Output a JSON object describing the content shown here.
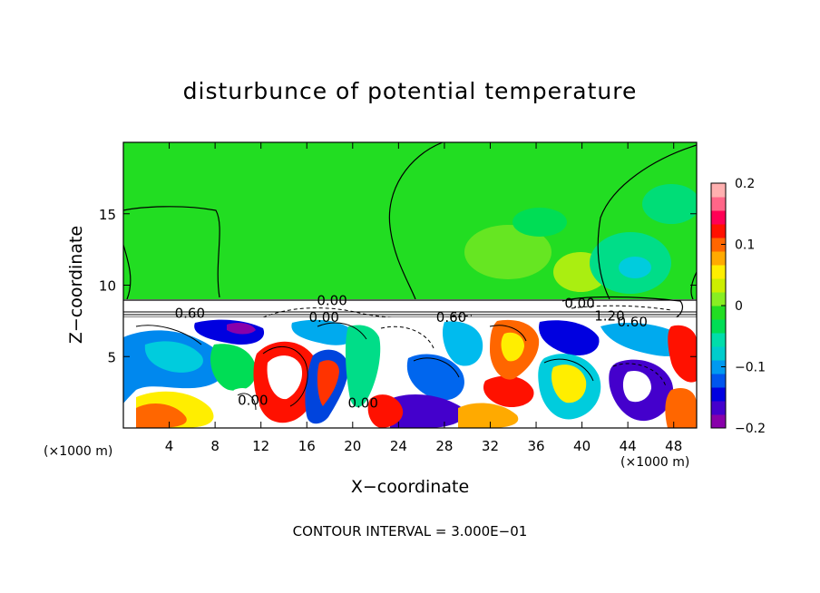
{
  "chart_data": {
    "type": "heatmap",
    "title": "disturbunce of potential temperature",
    "xlabel": "X−coordinate",
    "ylabel": "Z−coordinate",
    "x_unit": "(×1000 m)",
    "y_unit": "(×1000 m)",
    "xlim": [
      0,
      50
    ],
    "ylim": [
      0,
      20
    ],
    "x_ticks": [
      4,
      8,
      12,
      16,
      20,
      24,
      28,
      32,
      36,
      40,
      44,
      48
    ],
    "y_ticks": [
      5,
      10,
      15
    ],
    "colorbar": {
      "range": [
        -0.2,
        0.2
      ],
      "tick_values": [
        0.2,
        0.1,
        0,
        -0.1,
        -0.2
      ],
      "tick_labels": [
        "0.2",
        "0.1",
        "0",
        "−0.1",
        "−0.2"
      ],
      "colors": [
        "#8800aa",
        "#4400cc",
        "#0000e0",
        "#0055ee",
        "#0099f0",
        "#00cccc",
        "#00ddaa",
        "#00dd55",
        "#22dd22",
        "#88ee22",
        "#ccee00",
        "#ffee00",
        "#ffaa00",
        "#ff6600",
        "#ff1100",
        "#ff0055",
        "#ff6688",
        "#ffb0b0"
      ]
    },
    "contour_labels": [
      {
        "text": "0.00",
        "x": 18.2,
        "y": 9.0
      },
      {
        "text": "0.60",
        "x": 5.8,
        "y": 8.1
      },
      {
        "text": "0.00",
        "x": 17.5,
        "y": 7.8
      },
      {
        "text": "0.60",
        "x": 28.6,
        "y": 7.8
      },
      {
        "text": "0.00",
        "x": 39.8,
        "y": 8.8
      },
      {
        "text": "1.20",
        "x": 42.4,
        "y": 7.9
      },
      {
        "text": "0.60",
        "x": 44.4,
        "y": 7.5
      },
      {
        "text": "0.00",
        "x": 11.3,
        "y": 2.0
      },
      {
        "text": "0.00",
        "x": 20.9,
        "y": 1.8
      }
    ],
    "contour_interval_text": "CONTOUR INTERVAL = 3.000E−01"
  }
}
